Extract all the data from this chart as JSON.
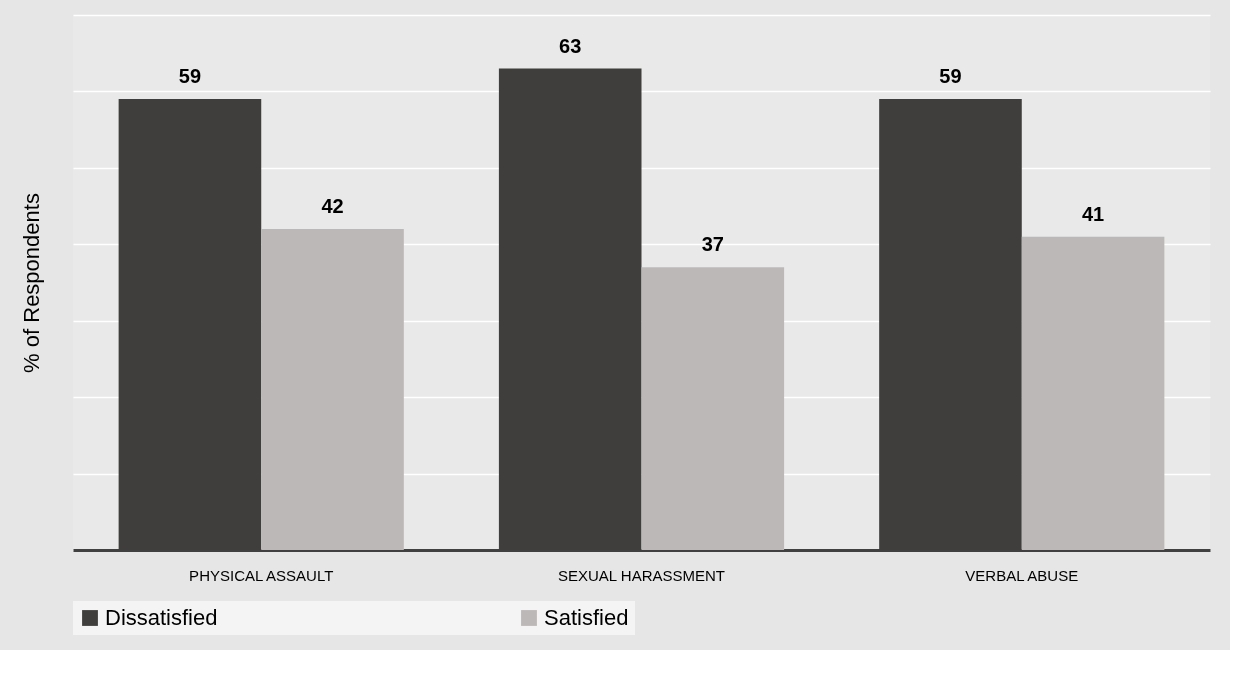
{
  "chart_data": {
    "type": "bar",
    "ylabel": "% of Respondents",
    "categories": [
      "PHYSICAL ASSAULT",
      "SEXUAL HARASSMENT",
      "VERBAL ABUSE"
    ],
    "series": [
      {
        "name": "Dissatisfied",
        "color": "#3f3e3c",
        "values": [
          59,
          63,
          59
        ]
      },
      {
        "name": "Satisfied",
        "color": "#bcb8b7",
        "values": [
          42,
          37,
          41
        ]
      }
    ],
    "ylim": [
      0,
      70
    ],
    "yticks": [
      {
        "value": 0,
        "label": null
      },
      {
        "value": 10,
        "label": null
      },
      {
        "value": 20,
        "label": null
      },
      {
        "value": 30,
        "label": null
      },
      {
        "value": 40,
        "label": null
      },
      {
        "value": 50,
        "label": null
      },
      {
        "value": 60,
        "label": null
      },
      {
        "value": 70,
        "label": null
      }
    ],
    "tick_labels": "x",
    "grid": "y",
    "legend": "bottom",
    "data_labels": true
  }
}
